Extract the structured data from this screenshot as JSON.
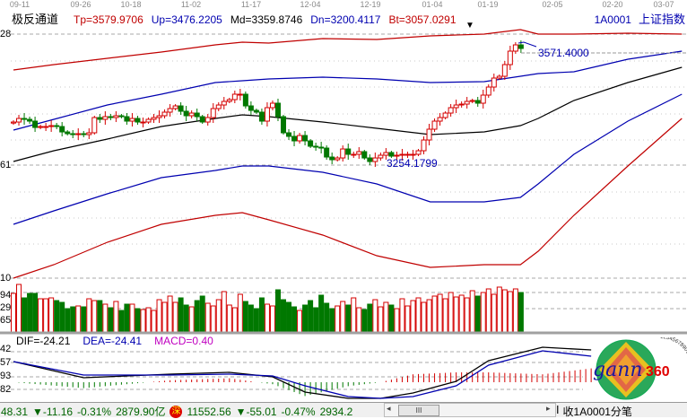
{
  "header": {
    "indicator_name": "极反通道",
    "tp": "Tp=3579.9706",
    "up": "Up=3476.2205",
    "md": "Md=3359.8746",
    "dn": "Dn=3200.4117",
    "bt": "Bt=3057.0291",
    "code": "1A0001",
    "index_name": "上证指数"
  },
  "dates": [
    "09-11",
    "09-26",
    "10-18",
    "11-02",
    "11-17",
    "12-04",
    "12-19",
    "01-04",
    "01-19",
    "02-05",
    "02-20",
    "03-07"
  ],
  "axis_labels": {
    "price": [
      "28",
      "61",
      "10"
    ],
    "volume": [
      "94",
      "29",
      "65"
    ],
    "macd": [
      "42",
      "57",
      "93",
      "82"
    ]
  },
  "annotations": {
    "high": "3571.4000",
    "low": "3254.1799"
  },
  "macd_header": {
    "dif": "DIF=-24.21",
    "dea": "DEA=-24.41",
    "macd": "MACD=0.40"
  },
  "colors": {
    "up": "#d40000",
    "down": "#007800",
    "tp": "#c00000",
    "band": "#0000b0",
    "md": "#000000",
    "macd_label": "#c000c0"
  },
  "chart_data": {
    "type": "candlestick",
    "closes": [
      3372.8,
      3383.1,
      3380.6,
      3375.4,
      3357.3,
      3359.9,
      3359.9,
      3362.5,
      3359.9,
      3344.4,
      3339.3,
      3336.7,
      3339.3,
      3336.7,
      3341.9,
      3385.7,
      3380.6,
      3388.3,
      3385.7,
      3390.9,
      3388.3,
      3375.4,
      3383.1,
      3372.8,
      3372.8,
      3380.6,
      3385.7,
      3390.9,
      3401.2,
      3411.5,
      3419.2,
      3403.8,
      3390.9,
      3398.6,
      3388.3,
      3372.8,
      3385.7,
      3411.5,
      3421.8,
      3432.1,
      3437.3,
      3452.8,
      3452.8,
      3419.2,
      3406.3,
      3401.2,
      3375.4,
      3414.1,
      3427.0,
      3388.3,
      3341.9,
      3331.6,
      3318.7,
      3334.1,
      3318.7,
      3303.2,
      3300.6,
      3298.0,
      3272.2,
      3264.5,
      3269.6,
      3295.4,
      3280.0,
      3280.0,
      3287.7,
      3269.6,
      3259.3,
      3269.6,
      3277.4,
      3285.1,
      3274.8,
      3277.4,
      3280.0,
      3280.0,
      3280.0,
      3290.3,
      3321.2,
      3352.2,
      3375.4,
      3385.7,
      3398.6,
      3414.1,
      3421.8,
      3424.4,
      3432.1,
      3434.7,
      3427.0,
      3450.2,
      3473.4,
      3499.2,
      3504.3,
      3537.9,
      3576.6,
      3594.6,
      3584.3
    ],
    "volumes": [
      43,
      53,
      38,
      43,
      43,
      37,
      37,
      38,
      35,
      33,
      26,
      28,
      29,
      28,
      37,
      35,
      35,
      31,
      27,
      34,
      24,
      31,
      31,
      26,
      25,
      27,
      24,
      36,
      33,
      40,
      33,
      38,
      30,
      28,
      35,
      40,
      32,
      29,
      36,
      45,
      30,
      27,
      42,
      34,
      30,
      26,
      38,
      31,
      29,
      47,
      36,
      33,
      28,
      24,
      30,
      35,
      27,
      41,
      32,
      26,
      29,
      34,
      30,
      38,
      27,
      25,
      31,
      36,
      28,
      33,
      30,
      26,
      37,
      29,
      35,
      38,
      33,
      36,
      40,
      42,
      37,
      44,
      39,
      41,
      38,
      46,
      40,
      44,
      48,
      42,
      50,
      47,
      45,
      48,
      44
    ],
    "band_index": [
      0,
      7.5,
      17.4,
      27.4,
      37.4,
      42.4,
      47.3,
      57.3,
      67.3,
      77.2,
      87.2,
      93.9,
      97.2,
      103.8,
      113.8,
      123.8
    ],
    "bands": {
      "Tp": [
        3522.4,
        3537.9,
        3556.0,
        3574.0,
        3594.6,
        3602.4,
        3599.8,
        3612.7,
        3610.1,
        3620.4,
        3625.6,
        3638.5,
        3625.6,
        3625.6,
        3628.2,
        3625.6
      ],
      "Up": [
        3349.6,
        3380.6,
        3421.9,
        3452.8,
        3486.3,
        3491.5,
        3496.6,
        3501.8,
        3496.6,
        3486.3,
        3488.9,
        3504.4,
        3512.1,
        3517.3,
        3553.4,
        3576.6
      ],
      "Md": [
        3259.4,
        3290.3,
        3323.9,
        3360.0,
        3383.2,
        3393.5,
        3388.3,
        3372.9,
        3354.8,
        3336.8,
        3344.5,
        3362.5,
        3383.2,
        3434.8,
        3486.3,
        3530.2
      ],
      "Dn": [
        3078.9,
        3117.5,
        3166.5,
        3213.0,
        3233.6,
        3246.5,
        3246.5,
        3228.4,
        3194.9,
        3143.3,
        3143.3,
        3156.2,
        3194.9,
        3280.0,
        3375.4,
        3452.8
      ],
      "Bt": [
        2924.1,
        2962.8,
        3027.3,
        3078.9,
        3104.6,
        3112.4,
        3091.8,
        3047.9,
        2988.6,
        2955.1,
        2962.8,
        2962.8,
        3001.5,
        3104.6,
        3246.5,
        3383.2
      ]
    },
    "macd_index": [
      0,
      13,
      29,
      40,
      48,
      54,
      62,
      68,
      74,
      82,
      88,
      98,
      107
    ],
    "dif": [
      23,
      5,
      9,
      11,
      6,
      -11,
      -18,
      -18,
      -12,
      1,
      24,
      39,
      36
    ],
    "dea": [
      23,
      8,
      8,
      9,
      7,
      -4,
      -16,
      -18,
      -16,
      -4,
      19,
      35,
      29
    ]
  },
  "status": {
    "sh_value": "48.31",
    "sh_change": "▼-11.16",
    "sh_pct": "-0.31%",
    "sh_amount": "2879.90亿",
    "sz_badge": "深",
    "sz_value": "11552.56",
    "sz_change": "▼-55.01",
    "sz_pct": "-0.47%",
    "sz_amount": "2934.2",
    "scroll_thumb": "III",
    "feed": "收1A0001分笔"
  },
  "logo": {
    "text": "gann",
    "number": "360",
    "ring": "1234567890123456789"
  }
}
